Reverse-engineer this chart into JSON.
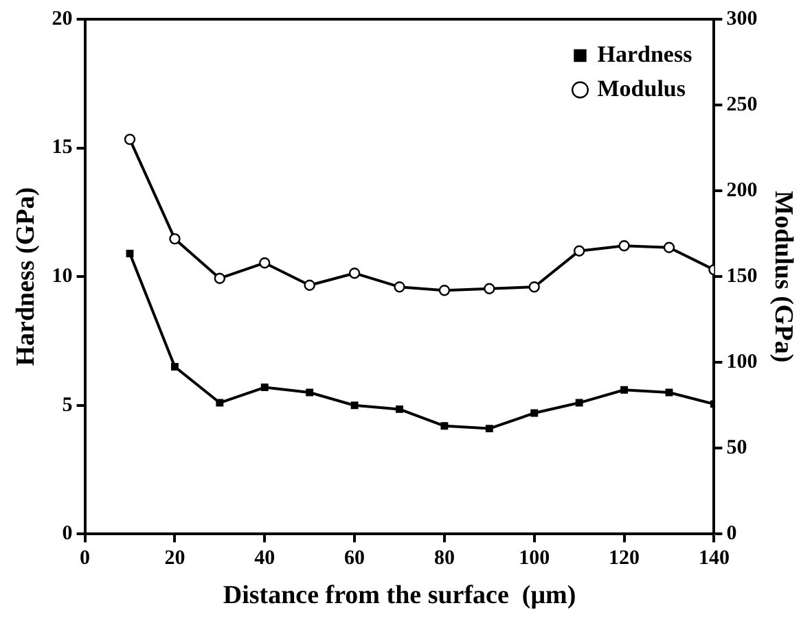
{
  "chart_data": {
    "type": "line",
    "xlabel": "Distance from the surface  (μm)",
    "ylabel": "Hardness (GPa)",
    "y2label": "Modulus (GPa)",
    "x": [
      10,
      20,
      30,
      40,
      50,
      60,
      70,
      80,
      90,
      100,
      110,
      120,
      130,
      140
    ],
    "series": [
      {
        "name": "Hardness",
        "color": "#000000",
        "marker": "square",
        "values": [
          10.9,
          6.5,
          5.1,
          5.7,
          5.5,
          5.0,
          4.85,
          4.2,
          4.1,
          4.7,
          5.1,
          5.6,
          5.5,
          5.05
        ]
      },
      {
        "name": "Modulus",
        "color": "#000000",
        "marker": "circle",
        "axis": "y2",
        "values": [
          230,
          172,
          149,
          158,
          145,
          152,
          144,
          142,
          143,
          144,
          165,
          168,
          167,
          154
        ]
      }
    ],
    "xlim": [
      0,
      140
    ],
    "xticks": [
      0,
      20,
      40,
      60,
      80,
      100,
      120,
      140
    ],
    "ylim": [
      0,
      20
    ],
    "yticks": [
      0,
      5,
      10,
      15,
      20
    ],
    "y2lim": [
      0,
      300
    ],
    "y2ticks": [
      0,
      50,
      100,
      150,
      200,
      250,
      300
    ],
    "grid": false,
    "legend": "top right",
    "line_style": "solid"
  }
}
